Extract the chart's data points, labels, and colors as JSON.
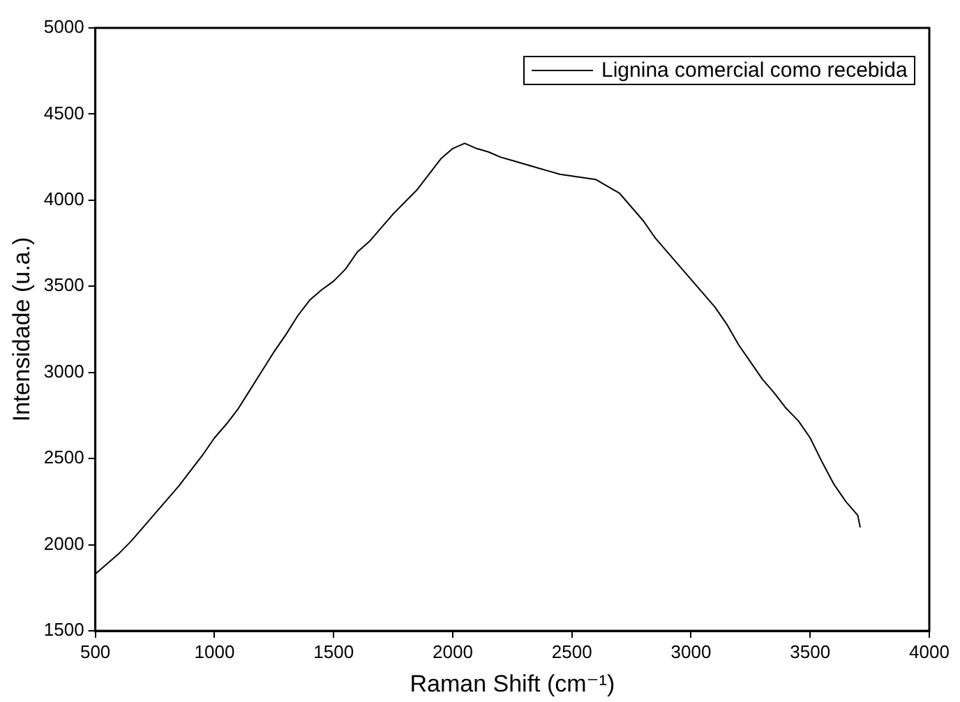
{
  "chart_data": {
    "type": "line",
    "xlabel": "Raman Shift (cm⁻¹)",
    "ylabel": "Intensidade (u.a.)",
    "xlim": [
      500,
      4000
    ],
    "xticks": [
      500,
      1000,
      1500,
      2000,
      2500,
      3000,
      3500,
      4000
    ],
    "ylim": [
      1500,
      5000
    ],
    "yticks": [
      1500,
      2000,
      2500,
      3000,
      3500,
      4000,
      4500,
      5000
    ],
    "grid": false,
    "legend": "top right",
    "marker": "none",
    "line_style": "solid",
    "series": [
      {
        "name": "Lignina comercial como recebida",
        "color": "#000000",
        "x": [
          500,
          550,
          600,
          650,
          700,
          750,
          800,
          850,
          900,
          950,
          1000,
          1050,
          1100,
          1150,
          1200,
          1250,
          1300,
          1350,
          1400,
          1450,
          1500,
          1550,
          1600,
          1650,
          1700,
          1750,
          1800,
          1850,
          1900,
          1950,
          2000,
          2050,
          2100,
          2150,
          2200,
          2250,
          2300,
          2350,
          2400,
          2450,
          2500,
          2550,
          2600,
          2650,
          2700,
          2750,
          2800,
          2850,
          2900,
          2950,
          3000,
          3050,
          3100,
          3150,
          3200,
          3250,
          3300,
          3350,
          3400,
          3450,
          3500,
          3550,
          3600,
          3650,
          3700,
          3710
        ],
        "values": [
          1830,
          1890,
          1950,
          2020,
          2100,
          2180,
          2260,
          2340,
          2430,
          2520,
          2620,
          2700,
          2790,
          2900,
          3010,
          3120,
          3220,
          3330,
          3420,
          3480,
          3530,
          3600,
          3700,
          3760,
          3840,
          3920,
          3990,
          4060,
          4150,
          4240,
          4300,
          4330,
          4300,
          4280,
          4250,
          4230,
          4210,
          4190,
          4170,
          4150,
          4140,
          4130,
          4120,
          4080,
          4040,
          3960,
          3880,
          3780,
          3700,
          3620,
          3540,
          3460,
          3380,
          3280,
          3160,
          3060,
          2960,
          2880,
          2790,
          2720,
          2620,
          2480,
          2350,
          2250,
          2170,
          2100
        ]
      }
    ]
  }
}
